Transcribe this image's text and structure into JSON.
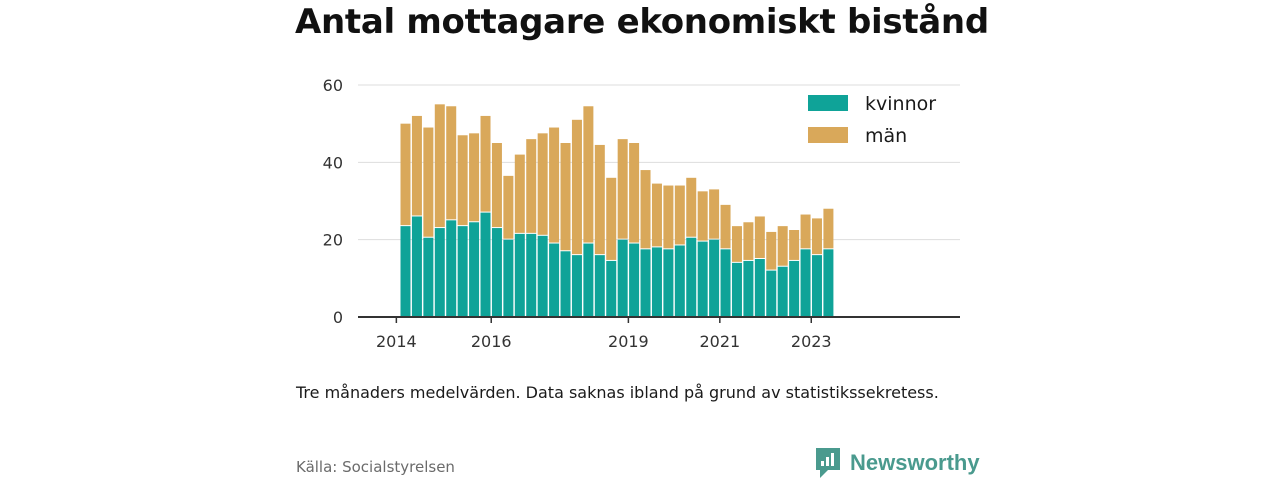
{
  "title": "Antal mottagare ekonomiskt bistånd",
  "note": "Tre månaders medelvärden. Data saknas ibland på grund av statistikssekretess.",
  "source": "Källa: Socialstyrelsen",
  "brand": {
    "name": "Newsworthy",
    "icon": "newsworthy-logo-icon",
    "color": "#4a9a8e"
  },
  "colors": {
    "kvinnor": "#0fa398",
    "man": "#d9a85a",
    "grid": "#dddddd",
    "axis": "#333333"
  },
  "chart_data": {
    "type": "bar",
    "stacked": true,
    "title": "Antal mottagare ekonomiskt bistånd",
    "xlabel": "",
    "ylabel": "",
    "ylim": [
      0,
      60
    ],
    "y_ticks": [
      0,
      20,
      40,
      60
    ],
    "x_ticks": [
      {
        "label": "2014",
        "index": -0.8
      },
      {
        "label": "2016",
        "index": 7.5
      },
      {
        "label": "2019",
        "index": 19.5
      },
      {
        "label": "2021",
        "index": 27.5
      },
      {
        "label": "2023",
        "index": 35.5
      }
    ],
    "grid": true,
    "legend_position": "top-right",
    "series": [
      {
        "name": "kvinnor",
        "values": [
          23.5,
          26,
          20.5,
          23,
          25,
          23.5,
          24.5,
          27,
          23,
          20,
          21.5,
          21.5,
          21,
          19,
          17,
          16,
          19,
          16,
          14.5,
          20,
          19,
          17.5,
          18,
          17.5,
          18.5,
          20.5,
          19.5,
          20,
          17.5,
          14,
          14.5,
          15,
          12,
          13,
          14.5,
          17.5,
          16,
          17.5
        ]
      },
      {
        "name": "män",
        "values": [
          26.5,
          26,
          28.5,
          32,
          29.5,
          23.5,
          23,
          25,
          22,
          16.5,
          20.5,
          24.5,
          26.5,
          30,
          28,
          35,
          35.5,
          28.5,
          21.5,
          26,
          26,
          20.5,
          16.5,
          16.5,
          15.5,
          15.5,
          13,
          13,
          11.5,
          9.5,
          10,
          11,
          10,
          10.5,
          8,
          9,
          9.5,
          10.5
        ]
      }
    ]
  }
}
